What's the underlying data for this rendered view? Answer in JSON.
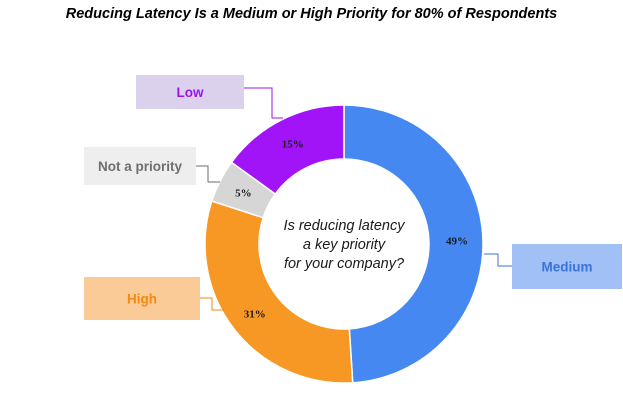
{
  "chart_data": {
    "type": "donut",
    "title": "Reducing Latency Is a Medium or High Priority for 80% of Respondents",
    "center_text": [
      "Is reducing latency",
      "a key priority",
      "for your company?"
    ],
    "slices": [
      {
        "label": "Medium",
        "value": 49,
        "display": "49%",
        "color": "#4588f2",
        "callout_bg": "#a1c1f6",
        "callout_fg": "#3a73d9"
      },
      {
        "label": "High",
        "value": 31,
        "display": "31%",
        "color": "#f79824",
        "callout_bg": "#fbcb97",
        "callout_fg": "#f08a10"
      },
      {
        "label": "Not a priority",
        "value": 5,
        "display": "5%",
        "color": "#d6d6d6",
        "callout_bg": "#eeeeee",
        "callout_fg": "#6e6e6e"
      },
      {
        "label": "Low",
        "value": 15,
        "display": "15%",
        "color": "#a114f7",
        "callout_bg": "#dcd1ed",
        "callout_fg": "#9b14f0"
      }
    ]
  }
}
